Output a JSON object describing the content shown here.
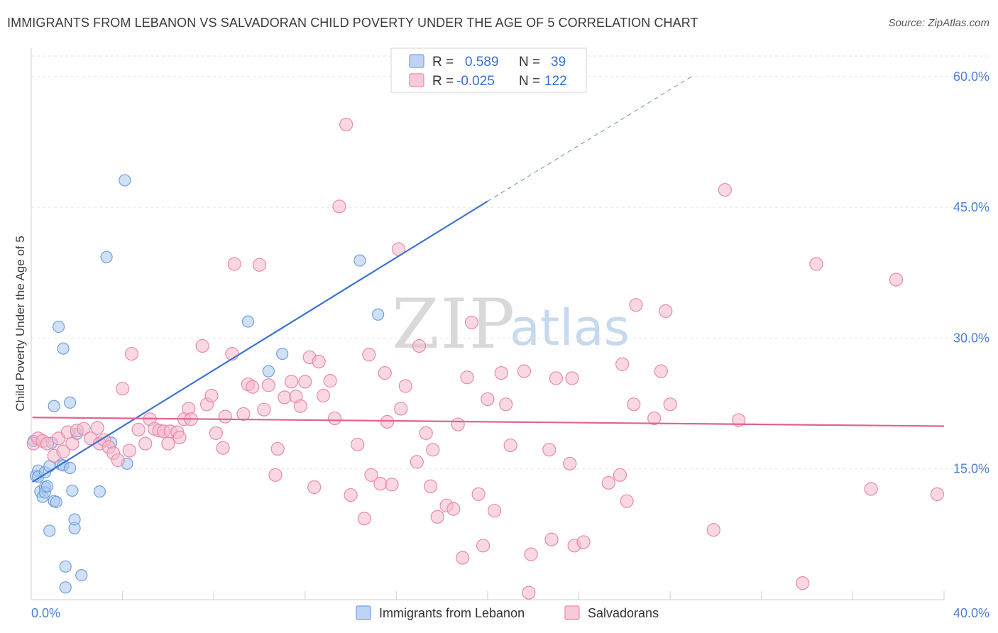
{
  "title": "IMMIGRANTS FROM LEBANON VS SALVADORAN CHILD POVERTY UNDER THE AGE OF 5 CORRELATION CHART",
  "source": "Source: ZipAtlas.com",
  "watermark": {
    "part1": "ZIP",
    "part2": "atlas"
  },
  "legend": {
    "rows": [
      {
        "r_label": "R =",
        "r_value": "0.589",
        "n_label": "N =",
        "n_value": "39",
        "color": "#a9c6ef"
      },
      {
        "r_label": "R =",
        "r_value": "-0.025",
        "n_label": "N =",
        "n_value": "122",
        "color": "#f5b8cc"
      }
    ]
  },
  "bottom_legend": [
    {
      "label": "Immigrants from Lebanon",
      "color": "#a9c6ef"
    },
    {
      "label": "Salvadorans",
      "color": "#f5b8cc"
    }
  ],
  "chart_data": {
    "type": "scatter",
    "ylabel": "Child Poverty Under the Age of 5",
    "xlabel": "",
    "xlim": [
      0,
      40
    ],
    "ylim": [
      0,
      63
    ],
    "x_tick_labels": {
      "min": "0.0%",
      "max": "40.0%"
    },
    "y_ticks": [
      15,
      30,
      45,
      60
    ],
    "y_tick_labels": [
      "15.0%",
      "30.0%",
      "45.0%",
      "60.0%"
    ],
    "grid": true,
    "series": [
      {
        "name": "Immigrants from Lebanon",
        "color": "#6fa0e0",
        "fill": "#a9c6ef",
        "points": [
          [
            0.1,
            18.2
          ],
          [
            0.2,
            14.2
          ],
          [
            0.3,
            14.8
          ],
          [
            0.3,
            14.1
          ],
          [
            0.4,
            12.4
          ],
          [
            0.5,
            11.8
          ],
          [
            0.6,
            12.9
          ],
          [
            0.6,
            12.3
          ],
          [
            0.6,
            14.6
          ],
          [
            0.7,
            13.0
          ],
          [
            0.8,
            15.3
          ],
          [
            0.8,
            7.9
          ],
          [
            0.9,
            18.0
          ],
          [
            1.0,
            22.2
          ],
          [
            1.0,
            11.3
          ],
          [
            1.1,
            11.2
          ],
          [
            1.2,
            31.3
          ],
          [
            1.3,
            15.5
          ],
          [
            1.4,
            28.8
          ],
          [
            1.4,
            15.4
          ],
          [
            1.5,
            3.8
          ],
          [
            1.5,
            1.4
          ],
          [
            1.7,
            22.6
          ],
          [
            1.7,
            15.1
          ],
          [
            1.8,
            12.5
          ],
          [
            1.9,
            8.2
          ],
          [
            1.9,
            9.2
          ],
          [
            2.0,
            19.0
          ],
          [
            2.2,
            2.8
          ],
          [
            3.0,
            12.4
          ],
          [
            3.3,
            39.3
          ],
          [
            3.5,
            18.0
          ],
          [
            4.1,
            48.1
          ],
          [
            4.2,
            15.6
          ],
          [
            9.5,
            31.9
          ],
          [
            10.4,
            26.2
          ],
          [
            11.0,
            28.2
          ],
          [
            14.4,
            38.9
          ],
          [
            15.2,
            32.7
          ]
        ],
        "trend": {
          "x0": 0.05,
          "y0": 13.5,
          "x1": 20.0,
          "y1": 45.7,
          "dash_to_x": 29.0,
          "dash_to_y": 60.1,
          "color": "#3b74d1"
        }
      },
      {
        "name": "Salvadorans",
        "color": "#e88aa8",
        "fill": "#f5b8cc",
        "points": [
          [
            0.1,
            17.9
          ],
          [
            0.3,
            18.5
          ],
          [
            0.5,
            18.2
          ],
          [
            0.7,
            17.9
          ],
          [
            1.0,
            16.5
          ],
          [
            1.2,
            18.5
          ],
          [
            1.4,
            17.0
          ],
          [
            1.6,
            19.2
          ],
          [
            1.8,
            17.9
          ],
          [
            2.0,
            19.4
          ],
          [
            2.3,
            19.6
          ],
          [
            2.6,
            18.5
          ],
          [
            2.9,
            19.7
          ],
          [
            3.0,
            17.9
          ],
          [
            3.2,
            18.3
          ],
          [
            3.4,
            17.5
          ],
          [
            3.6,
            16.8
          ],
          [
            3.8,
            16.0
          ],
          [
            4.0,
            24.2
          ],
          [
            4.3,
            17.1
          ],
          [
            4.4,
            28.2
          ],
          [
            4.7,
            19.5
          ],
          [
            5.0,
            17.9
          ],
          [
            5.2,
            20.7
          ],
          [
            5.4,
            19.6
          ],
          [
            5.6,
            19.4
          ],
          [
            5.8,
            19.3
          ],
          [
            6.0,
            17.9
          ],
          [
            6.1,
            19.3
          ],
          [
            6.4,
            19.2
          ],
          [
            6.5,
            18.6
          ],
          [
            6.7,
            20.7
          ],
          [
            6.9,
            21.9
          ],
          [
            7.0,
            20.7
          ],
          [
            7.5,
            29.1
          ],
          [
            7.7,
            22.4
          ],
          [
            7.9,
            23.4
          ],
          [
            8.1,
            19.1
          ],
          [
            8.4,
            17.4
          ],
          [
            8.5,
            21.0
          ],
          [
            8.8,
            28.2
          ],
          [
            8.9,
            38.5
          ],
          [
            9.3,
            21.3
          ],
          [
            9.5,
            24.7
          ],
          [
            9.7,
            24.4
          ],
          [
            10.0,
            38.4
          ],
          [
            10.2,
            21.8
          ],
          [
            10.4,
            24.6
          ],
          [
            10.7,
            14.3
          ],
          [
            10.8,
            17.3
          ],
          [
            11.1,
            23.2
          ],
          [
            11.4,
            25.0
          ],
          [
            11.6,
            23.3
          ],
          [
            11.8,
            22.2
          ],
          [
            12.0,
            25.0
          ],
          [
            12.2,
            27.8
          ],
          [
            12.4,
            12.9
          ],
          [
            12.6,
            27.3
          ],
          [
            12.8,
            23.4
          ],
          [
            13.1,
            25.1
          ],
          [
            13.3,
            20.8
          ],
          [
            13.5,
            45.1
          ],
          [
            13.8,
            54.5
          ],
          [
            14.0,
            12.0
          ],
          [
            14.3,
            17.8
          ],
          [
            14.6,
            9.3
          ],
          [
            14.8,
            28.1
          ],
          [
            14.9,
            14.3
          ],
          [
            15.3,
            13.3
          ],
          [
            15.6,
            20.4
          ],
          [
            15.5,
            26.0
          ],
          [
            15.8,
            13.2
          ],
          [
            16.1,
            40.2
          ],
          [
            16.2,
            21.9
          ],
          [
            16.4,
            24.5
          ],
          [
            16.9,
            15.8
          ],
          [
            17.0,
            29.1
          ],
          [
            17.3,
            19.1
          ],
          [
            17.5,
            13.0
          ],
          [
            17.6,
            17.2
          ],
          [
            17.8,
            9.5
          ],
          [
            18.2,
            10.8
          ],
          [
            18.5,
            10.4
          ],
          [
            18.7,
            20.1
          ],
          [
            18.9,
            4.8
          ],
          [
            19.1,
            25.5
          ],
          [
            19.3,
            31.8
          ],
          [
            19.6,
            12.1
          ],
          [
            19.8,
            6.2
          ],
          [
            20.0,
            23.0
          ],
          [
            20.3,
            10.2
          ],
          [
            20.6,
            26.0
          ],
          [
            20.8,
            22.4
          ],
          [
            21.0,
            17.7
          ],
          [
            21.6,
            26.2
          ],
          [
            21.8,
            0.8
          ],
          [
            21.9,
            5.2
          ],
          [
            22.7,
            17.2
          ],
          [
            22.8,
            6.9
          ],
          [
            23.0,
            25.4
          ],
          [
            23.6,
            15.6
          ],
          [
            23.7,
            25.4
          ],
          [
            23.8,
            6.2
          ],
          [
            24.2,
            6.6
          ],
          [
            25.3,
            13.4
          ],
          [
            25.8,
            14.3
          ],
          [
            25.9,
            27.0
          ],
          [
            26.1,
            11.3
          ],
          [
            26.4,
            22.4
          ],
          [
            26.5,
            33.8
          ],
          [
            27.3,
            20.8
          ],
          [
            27.6,
            26.2
          ],
          [
            27.8,
            33.1
          ],
          [
            28.0,
            22.4
          ],
          [
            29.9,
            8.0
          ],
          [
            30.4,
            47.0
          ],
          [
            31.0,
            20.6
          ],
          [
            33.8,
            1.9
          ],
          [
            34.4,
            38.5
          ],
          [
            36.8,
            12.7
          ],
          [
            37.9,
            36.7
          ],
          [
            39.7,
            12.1
          ]
        ],
        "trend": {
          "x0": 0.05,
          "y0": 20.9,
          "x1": 40.0,
          "y1": 19.9,
          "color": "#e0648e"
        }
      }
    ]
  }
}
